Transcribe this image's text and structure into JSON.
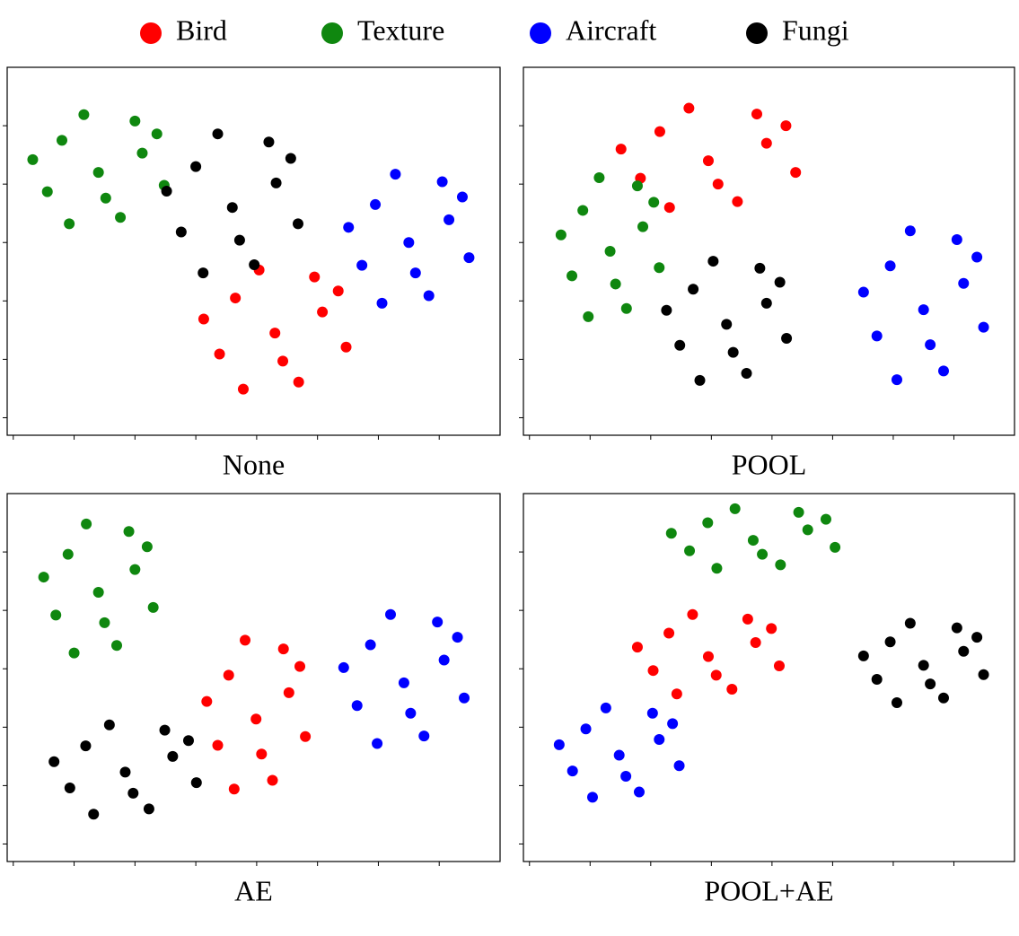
{
  "chart_data": [
    {
      "type": "scatter",
      "title": "None",
      "legend": "top",
      "xlim": [
        -0.1,
        8
      ],
      "ylim": [
        -0.3,
        6
      ],
      "xticks": [
        0,
        1,
        2,
        3,
        4,
        5,
        6,
        7
      ],
      "yticks": [
        0,
        1,
        2,
        3,
        4,
        5
      ],
      "series": [
        {
          "name": "Bird",
          "color": "#ff0000",
          "x": [
            4.3,
            5.08,
            3.65,
            4.69,
            3.39,
            5.47,
            4.04,
            4.95,
            3.13,
            4.43,
            3.78,
            5.34
          ],
          "y": [
            1.45,
            1.81,
            2.05,
            0.61,
            1.09,
            1.21,
            2.53,
            2.41,
            1.69,
            0.97,
            0.49,
            2.17
          ]
        },
        {
          "name": "Texture",
          "color": "#0f870f",
          "x": [
            1.4,
            2.12,
            0.8,
            1.76,
            0.56,
            2.48,
            1.16,
            2.0,
            0.32,
            1.52,
            0.92,
            2.36
          ],
          "y": [
            4.2,
            4.53,
            4.75,
            3.43,
            3.87,
            3.98,
            5.19,
            5.08,
            4.42,
            3.76,
            3.32,
            4.86
          ]
        },
        {
          "name": "Aircraft",
          "color": "#0000ff",
          "x": [
            6.5,
            7.16,
            5.95,
            6.83,
            5.73,
            7.49,
            6.28,
            7.05,
            5.51,
            6.61,
            6.06,
            7.38
          ],
          "y": [
            3.0,
            3.39,
            3.65,
            2.09,
            2.61,
            2.74,
            4.17,
            4.04,
            3.26,
            2.48,
            1.96,
            3.78
          ]
        },
        {
          "name": "Fungi",
          "color": "#000000",
          "x": [
            3.6,
            4.32,
            3.0,
            3.96,
            2.76,
            4.68,
            3.36,
            4.2,
            2.52,
            3.72,
            3.12,
            4.56
          ],
          "y": [
            3.6,
            4.02,
            4.3,
            2.62,
            3.18,
            3.32,
            4.86,
            4.72,
            3.88,
            3.04,
            2.48,
            4.44
          ]
        }
      ]
    },
    {
      "type": "scatter",
      "title": "POOL",
      "xlim": [
        -0.1,
        8
      ],
      "ylim": [
        -0.3,
        6
      ],
      "xticks": [
        0,
        1,
        2,
        3,
        4,
        5,
        6,
        7
      ],
      "yticks": [
        0,
        1,
        2,
        3,
        4,
        5
      ],
      "series": [
        {
          "name": "Bird",
          "color": "#ff0000",
          "x": [
            2.95,
            3.91,
            2.15,
            3.43,
            1.83,
            4.39,
            2.63,
            3.75,
            1.51,
            3.11,
            2.31,
            4.23
          ],
          "y": [
            4.4,
            4.7,
            4.9,
            3.7,
            4.1,
            4.2,
            5.3,
            5.2,
            4.6,
            4.0,
            3.6,
            5.0
          ]
        },
        {
          "name": "Texture",
          "color": "#0f870f",
          "x": [
            1.33,
            1.87,
            0.88,
            1.6,
            0.7,
            2.14,
            1.15,
            1.78,
            0.52,
            1.42,
            0.97,
            2.05
          ],
          "y": [
            2.85,
            3.27,
            3.55,
            1.87,
            2.43,
            2.57,
            4.11,
            3.97,
            3.13,
            2.29,
            1.73,
            3.69
          ]
        },
        {
          "name": "Aircraft",
          "color": "#0000ff",
          "x": [
            6.5,
            7.16,
            5.95,
            6.83,
            5.73,
            7.49,
            6.28,
            7.05,
            5.51,
            6.61,
            6.06,
            7.38
          ],
          "y": [
            1.85,
            2.3,
            2.6,
            0.8,
            1.4,
            1.55,
            3.2,
            3.05,
            2.15,
            1.25,
            0.65,
            2.75
          ]
        },
        {
          "name": "Fungi",
          "color": "#000000",
          "x": [
            3.25,
            3.91,
            2.7,
            3.58,
            2.48,
            4.24,
            3.03,
            3.8,
            2.26,
            3.36,
            2.81,
            4.13
          ],
          "y": [
            1.6,
            1.96,
            2.2,
            0.76,
            1.24,
            1.36,
            2.68,
            2.56,
            1.84,
            1.12,
            0.64,
            2.32
          ]
        }
      ]
    },
    {
      "type": "scatter",
      "title": "AE",
      "xlim": [
        -0.1,
        8
      ],
      "ylim": [
        -0.3,
        6
      ],
      "xticks": [
        0,
        1,
        2,
        3,
        4,
        5,
        6,
        7
      ],
      "yticks": [
        0,
        1,
        2,
        3,
        4,
        5
      ],
      "series": [
        {
          "name": "Bird",
          "color": "#ff0000",
          "x": [
            3.99,
            4.53,
            3.54,
            4.26,
            3.36,
            4.8,
            3.81,
            4.44,
            3.18,
            4.08,
            3.63,
            4.71
          ],
          "y": [
            2.14,
            2.59,
            2.89,
            1.09,
            1.69,
            1.84,
            3.49,
            3.34,
            2.44,
            1.54,
            0.94,
            3.04
          ]
        },
        {
          "name": "Texture",
          "color": "#0f870f",
          "x": [
            1.4,
            2.0,
            0.9,
            1.7,
            0.7,
            2.3,
            1.2,
            1.9,
            0.5,
            1.5,
            1.0,
            2.2
          ],
          "y": [
            4.31,
            4.7,
            4.96,
            3.4,
            3.92,
            4.05,
            5.48,
            5.35,
            4.57,
            3.79,
            3.27,
            5.09
          ]
        },
        {
          "name": "Aircraft",
          "color": "#0000ff",
          "x": [
            6.42,
            7.08,
            5.87,
            6.75,
            5.65,
            7.41,
            6.2,
            6.97,
            5.43,
            6.53,
            5.98,
            7.3
          ],
          "y": [
            2.76,
            3.15,
            3.41,
            1.85,
            2.37,
            2.5,
            3.93,
            3.8,
            3.02,
            2.24,
            1.72,
            3.54
          ]
        },
        {
          "name": "Fungi",
          "color": "#000000",
          "x": [
            1.84,
            2.62,
            1.19,
            2.23,
            0.93,
            3.01,
            1.58,
            2.49,
            0.67,
            1.97,
            1.32,
            2.88
          ],
          "y": [
            1.23,
            1.5,
            1.68,
            0.6,
            0.96,
            1.05,
            2.04,
            1.95,
            1.41,
            0.87,
            0.51,
            1.77
          ]
        }
      ]
    },
    {
      "type": "scatter",
      "title": "POOL+AE",
      "xlim": [
        -0.1,
        8
      ],
      "ylim": [
        -0.3,
        6
      ],
      "xticks": [
        0,
        1,
        2,
        3,
        4,
        5,
        6,
        7
      ],
      "yticks": [
        0,
        1,
        2,
        3,
        4,
        5
      ],
      "series": [
        {
          "name": "Bird",
          "color": "#ff0000",
          "x": [
            2.95,
            3.73,
            2.3,
            3.34,
            2.04,
            4.12,
            2.69,
            3.6,
            1.78,
            3.08,
            2.43,
            3.99
          ],
          "y": [
            3.21,
            3.45,
            3.61,
            2.65,
            2.97,
            3.05,
            3.93,
            3.85,
            3.37,
            2.89,
            2.57,
            3.69
          ]
        },
        {
          "name": "Texture",
          "color": "#0f870f",
          "x": [
            3.69,
            4.59,
            2.94,
            4.14,
            2.64,
            5.04,
            3.39,
            4.44,
            2.34,
            3.84,
            3.09,
            4.89
          ],
          "y": [
            5.2,
            5.38,
            5.5,
            4.78,
            5.02,
            5.08,
            5.74,
            5.68,
            5.32,
            4.96,
            4.72,
            5.56
          ]
        },
        {
          "name": "Aircraft",
          "color": "#0000ff",
          "x": [
            1.48,
            2.14,
            0.93,
            1.81,
            0.71,
            2.47,
            1.26,
            2.03,
            0.49,
            1.59,
            1.04,
            2.36
          ],
          "y": [
            1.52,
            1.79,
            1.97,
            0.89,
            1.25,
            1.34,
            2.33,
            2.24,
            1.7,
            1.16,
            0.8,
            2.06
          ]
        },
        {
          "name": "Fungi",
          "color": "#000000",
          "x": [
            6.5,
            7.16,
            5.95,
            6.83,
            5.73,
            7.49,
            6.28,
            7.05,
            5.51,
            6.61,
            6.06,
            7.38
          ],
          "y": [
            3.06,
            3.3,
            3.46,
            2.5,
            2.82,
            2.9,
            3.78,
            3.7,
            3.22,
            2.74,
            2.42,
            3.54
          ]
        }
      ]
    }
  ]
}
